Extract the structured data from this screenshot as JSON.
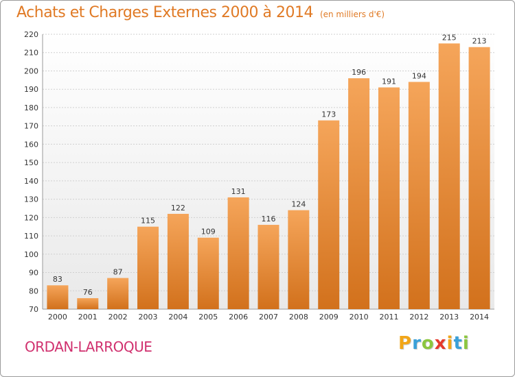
{
  "chart_data": {
    "type": "bar",
    "title": "Achats et Charges Externes 2000 à 2014",
    "subtitle": "(en milliers d'€)",
    "categories": [
      "2000",
      "2001",
      "2002",
      "2003",
      "2004",
      "2005",
      "2006",
      "2007",
      "2008",
      "2009",
      "2010",
      "2011",
      "2012",
      "2013",
      "2014"
    ],
    "values": [
      83,
      76,
      87,
      115,
      122,
      109,
      131,
      116,
      124,
      173,
      196,
      191,
      194,
      215,
      213
    ],
    "ylim": [
      70,
      220
    ],
    "yticks": [
      70,
      80,
      90,
      100,
      110,
      120,
      130,
      140,
      150,
      160,
      170,
      180,
      190,
      200,
      210,
      220
    ],
    "grid": true,
    "bar_color": "#e8892e"
  },
  "footer": {
    "town": "ORDAN-LARROQUE",
    "logo_letters": [
      "P",
      "r",
      "o",
      "x",
      "i",
      "t",
      "i"
    ],
    "logo_colors": [
      "#f2a618",
      "#3aa0d8",
      "#8cc63f",
      "#e5392c",
      "#f2a618",
      "#3aa0d8",
      "#8cc63f"
    ]
  }
}
